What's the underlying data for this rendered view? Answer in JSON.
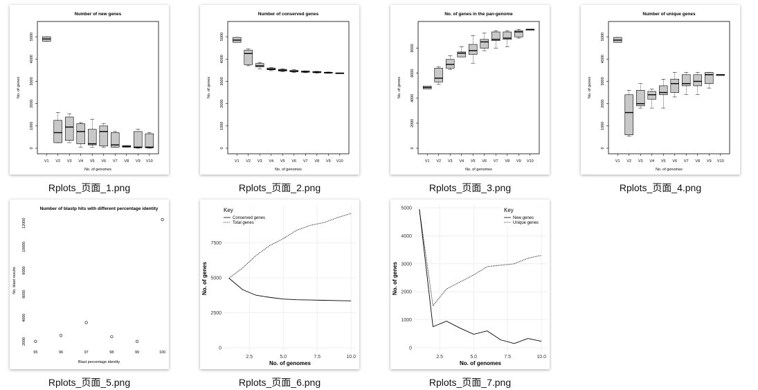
{
  "thumbnails": [
    {
      "filename": "Rplots_页面_1.png"
    },
    {
      "filename": "Rplots_页面_2.png"
    },
    {
      "filename": "Rplots_页面_3.png"
    },
    {
      "filename": "Rplots_页面_4.png"
    },
    {
      "filename": "Rplots_页面_5.png"
    },
    {
      "filename": "Rplots_页面_6.png"
    },
    {
      "filename": "Rplots_页面_7.png"
    }
  ],
  "chart_data": [
    {
      "type": "box",
      "title": "Number of new genes",
      "xlabel": "No. of genomes",
      "ylabel": "No. of genes",
      "categories": [
        "V1",
        "V2",
        "V3",
        "V4",
        "V5",
        "V6",
        "V7",
        "V8",
        "V9",
        "V10"
      ],
      "ylim": [
        0,
        5500
      ],
      "yticks": [
        0,
        1000,
        2000,
        3000,
        4000,
        5000
      ],
      "boxes": [
        {
          "min": 4800,
          "q1": 4800,
          "median": 4900,
          "q3": 5000,
          "max": 5000
        },
        {
          "min": 250,
          "q1": 250,
          "median": 700,
          "q3": 1250,
          "max": 1600
        },
        {
          "min": 250,
          "q1": 350,
          "median": 950,
          "q3": 1400,
          "max": 1550
        },
        {
          "min": 50,
          "q1": 200,
          "median": 750,
          "q3": 1100,
          "max": 1150
        },
        {
          "min": 50,
          "q1": 150,
          "median": 200,
          "q3": 850,
          "max": 1300
        },
        {
          "min": 50,
          "q1": 100,
          "median": 750,
          "q3": 1000,
          "max": 1100
        },
        {
          "min": 50,
          "q1": 50,
          "median": 150,
          "q3": 700,
          "max": 750
        },
        {
          "min": 50,
          "q1": 50,
          "median": 80,
          "q3": 120,
          "max": 120
        },
        {
          "min": 0,
          "q1": 20,
          "median": 50,
          "q3": 750,
          "max": 850
        },
        {
          "min": 0,
          "q1": 20,
          "median": 50,
          "q3": 650,
          "max": 700
        }
      ]
    },
    {
      "type": "box",
      "title": "Number of conserved genes",
      "xlabel": "No. of genomes",
      "ylabel": "No. of genes",
      "categories": [
        "V1",
        "V2",
        "V3",
        "V4",
        "V5",
        "V6",
        "V7",
        "V8",
        "V9",
        "V10"
      ],
      "ylim": [
        0,
        5500
      ],
      "yticks": [
        0,
        1000,
        2000,
        3000,
        4000,
        5000
      ],
      "boxes": [
        {
          "min": 4750,
          "q1": 4750,
          "median": 4850,
          "q3": 4970,
          "max": 4970
        },
        {
          "min": 3700,
          "q1": 3750,
          "median": 4250,
          "q3": 4400,
          "max": 4450
        },
        {
          "min": 3550,
          "q1": 3650,
          "median": 3700,
          "q3": 3800,
          "max": 3850
        },
        {
          "min": 3480,
          "q1": 3520,
          "median": 3550,
          "q3": 3600,
          "max": 3620
        },
        {
          "min": 3430,
          "q1": 3460,
          "median": 3500,
          "q3": 3540,
          "max": 3560
        },
        {
          "min": 3400,
          "q1": 3430,
          "median": 3450,
          "q3": 3500,
          "max": 3520
        },
        {
          "min": 3390,
          "q1": 3410,
          "median": 3430,
          "q3": 3460,
          "max": 3470
        },
        {
          "min": 3370,
          "q1": 3390,
          "median": 3410,
          "q3": 3440,
          "max": 3450
        },
        {
          "min": 3360,
          "q1": 3370,
          "median": 3390,
          "q3": 3410,
          "max": 3420
        },
        {
          "min": 3350,
          "q1": 3360,
          "median": 3370,
          "q3": 3380,
          "max": 3380
        }
      ]
    },
    {
      "type": "box",
      "title": "No. of genes in the pan-genome",
      "xlabel": "No. of genomes",
      "ylabel": "No. of genes",
      "categories": [
        "V1",
        "V2",
        "V3",
        "V4",
        "V5",
        "V6",
        "V7",
        "V8",
        "V9",
        "V10"
      ],
      "ylim": [
        0,
        9800
      ],
      "yticks": [
        0,
        2000,
        4000,
        6000,
        8000
      ],
      "boxes": [
        {
          "min": 4750,
          "q1": 4750,
          "median": 4850,
          "q3": 4970,
          "max": 4970
        },
        {
          "min": 5100,
          "q1": 5300,
          "median": 5600,
          "q3": 6400,
          "max": 6500
        },
        {
          "min": 6300,
          "q1": 6400,
          "median": 6700,
          "q3": 7100,
          "max": 7400
        },
        {
          "min": 7300,
          "q1": 7300,
          "median": 7600,
          "q3": 7700,
          "max": 8100
        },
        {
          "min": 6800,
          "q1": 7500,
          "median": 7800,
          "q3": 8300,
          "max": 9000
        },
        {
          "min": 7800,
          "q1": 8000,
          "median": 8500,
          "q3": 8700,
          "max": 9200
        },
        {
          "min": 8000,
          "q1": 8600,
          "median": 8700,
          "q3": 9300,
          "max": 9400
        },
        {
          "min": 8100,
          "q1": 8700,
          "median": 8800,
          "q3": 9300,
          "max": 9400
        },
        {
          "min": 8800,
          "q1": 8900,
          "median": 9300,
          "q3": 9400,
          "max": 9500
        },
        {
          "min": 9500,
          "q1": 9500,
          "median": 9500,
          "q3": 9500,
          "max": 9500
        }
      ]
    },
    {
      "type": "box",
      "title": "Number of unique genes",
      "xlabel": "No. of genomes",
      "ylabel": "No. of genes",
      "categories": [
        "V1",
        "V2",
        "V3",
        "V4",
        "V5",
        "V6",
        "V7",
        "V8",
        "V9",
        "V10"
      ],
      "ylim": [
        0,
        5500
      ],
      "yticks": [
        0,
        1000,
        2000,
        3000,
        4000,
        5000
      ],
      "boxes": [
        {
          "min": 4750,
          "q1": 4750,
          "median": 4850,
          "q3": 4970,
          "max": 4970
        },
        {
          "min": 550,
          "q1": 600,
          "median": 1600,
          "q3": 2400,
          "max": 2600
        },
        {
          "min": 1800,
          "q1": 1900,
          "median": 2000,
          "q3": 2600,
          "max": 2900
        },
        {
          "min": 1800,
          "q1": 2200,
          "median": 2400,
          "q3": 2550,
          "max": 2650
        },
        {
          "min": 1800,
          "q1": 2400,
          "median": 2500,
          "q3": 2800,
          "max": 3100
        },
        {
          "min": 2300,
          "q1": 2500,
          "median": 2900,
          "q3": 3100,
          "max": 3400
        },
        {
          "min": 2400,
          "q1": 2800,
          "median": 2900,
          "q3": 3300,
          "max": 3400
        },
        {
          "min": 2400,
          "q1": 2800,
          "median": 3000,
          "q3": 3300,
          "max": 3400
        },
        {
          "min": 2700,
          "q1": 2900,
          "median": 3300,
          "q3": 3400,
          "max": 3400
        },
        {
          "min": 3300,
          "q1": 3300,
          "median": 3300,
          "q3": 3300,
          "max": 3300
        }
      ]
    },
    {
      "type": "scatter",
      "title": "Number of blastp hits with different percentage identity",
      "xlabel": "Blast percentage identity",
      "ylabel": "No. blast results",
      "x": [
        95,
        96,
        97,
        98,
        99,
        100
      ],
      "y": [
        2000,
        2500,
        3600,
        2400,
        2000,
        12300
      ],
      "xlim": [
        94.8,
        100.2
      ],
      "ylim": [
        1700,
        12600
      ],
      "xticks": [
        95,
        96,
        97,
        98,
        99,
        100
      ],
      "yticks": [
        2000,
        4000,
        6000,
        8000,
        10000,
        12000
      ]
    },
    {
      "type": "line",
      "legend_title": "Key",
      "legend_position": "top-left",
      "xlabel": "No. of genomes",
      "ylabel": "No. of genes",
      "x": [
        1,
        2,
        3,
        4,
        5,
        6,
        7,
        8,
        9,
        10
      ],
      "series": [
        {
          "name": "Conserved genes",
          "style": "solid",
          "values": [
            4970,
            4150,
            3750,
            3600,
            3480,
            3430,
            3410,
            3390,
            3370,
            3350
          ]
        },
        {
          "name": "Total genes",
          "style": "dotted",
          "values": [
            4970,
            5700,
            6600,
            7300,
            7800,
            8400,
            8750,
            8950,
            9300,
            9600
          ]
        }
      ],
      "xlim": [
        0.6,
        10.4
      ],
      "ylim": [
        -300,
        10200
      ],
      "xticks": [
        2.5,
        5.0,
        7.5,
        10.0
      ],
      "yticks": [
        0,
        2500,
        5000,
        7500
      ]
    },
    {
      "type": "line",
      "legend_title": "Key",
      "legend_position": "top-right",
      "xlabel": "No. of genomes",
      "ylabel": "No. of genes",
      "x": [
        1,
        2,
        3,
        4,
        5,
        6,
        7,
        8,
        9,
        10
      ],
      "series": [
        {
          "name": "New genes",
          "style": "solid",
          "values": [
            4950,
            750,
            950,
            700,
            480,
            600,
            280,
            150,
            330,
            230
          ]
        },
        {
          "name": "Unique genes",
          "style": "dotted",
          "values": [
            4950,
            1500,
            2100,
            2350,
            2600,
            2900,
            2950,
            3000,
            3200,
            3300
          ]
        }
      ],
      "xlim": [
        0.6,
        10.4
      ],
      "ylim": [
        -150,
        5100
      ],
      "xticks": [
        2.5,
        5.0,
        7.5,
        10.0
      ],
      "yticks": [
        0,
        1000,
        2000,
        3000,
        4000,
        5000
      ]
    }
  ]
}
